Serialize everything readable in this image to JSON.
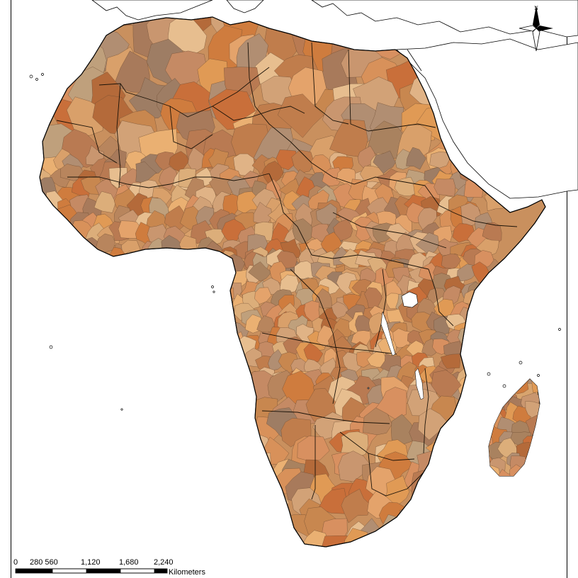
{
  "map": {
    "subject": "Africa administrative regions",
    "palette": [
      "#c8874f",
      "#d9a06a",
      "#b97a52",
      "#e4a36b",
      "#c9966f",
      "#a87a5b",
      "#d8915a",
      "#e0b386",
      "#b8855d",
      "#cf7c3e",
      "#bfa07c",
      "#d89060",
      "#a9825f",
      "#c58a64",
      "#e7be8f",
      "#b46a3a",
      "#d2a277",
      "#9e7d64",
      "#e09a55",
      "#c07d4c",
      "#dcae7a",
      "#b18e72",
      "#eab072",
      "#c96f3a"
    ],
    "ocean_color": "#ffffff",
    "outline_color": "#000000"
  },
  "north_arrow": {
    "label": "N",
    "icon": "north-arrow-icon"
  },
  "scale_bar": {
    "ticks": [
      "0",
      "280 560",
      "1,120",
      "1,680",
      "2,240"
    ],
    "units": "Kilometers"
  }
}
